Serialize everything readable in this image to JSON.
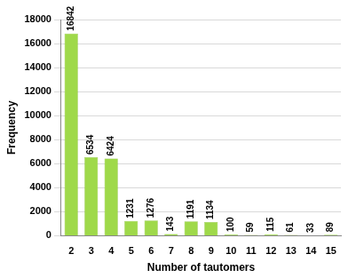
{
  "chart_data": {
    "type": "bar",
    "x_label": "Number of tautomers",
    "y_label": "Frequency",
    "categories": [
      "2",
      "3",
      "4",
      "5",
      "6",
      "7",
      "8",
      "9",
      "10",
      "11",
      "12",
      "13",
      "14",
      "15"
    ],
    "values": [
      16842,
      6534,
      6424,
      1231,
      1276,
      143,
      1191,
      1134,
      100,
      59,
      115,
      61,
      33,
      89
    ],
    "color": "#9fd94a",
    "ylim": [
      0,
      18000
    ],
    "yticks": [
      0,
      2000,
      4000,
      6000,
      8000,
      10000,
      12000,
      14000,
      16000,
      18000
    ],
    "grid": true,
    "data_labels": true
  }
}
